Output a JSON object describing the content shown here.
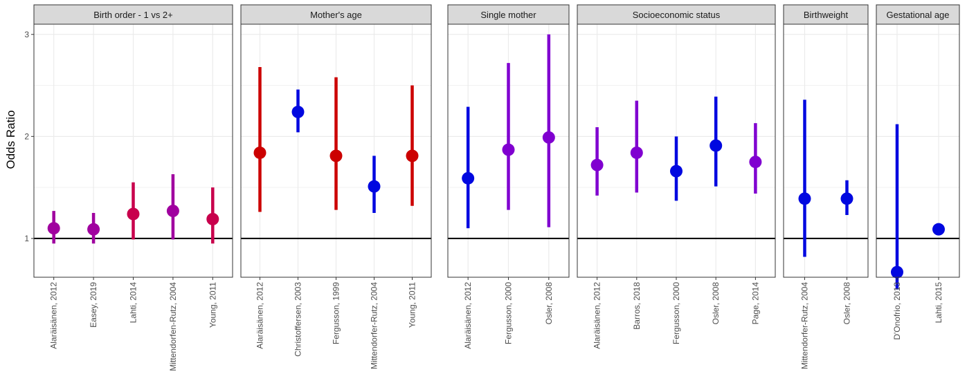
{
  "chart_data": {
    "type": "forest",
    "ylabel": "Odds Ratio",
    "reference_line": 1,
    "y_range": [
      0.62,
      3.1
    ],
    "y_ticks": [
      1,
      2,
      3
    ],
    "y_tick_labels": [
      "1",
      "2",
      "3"
    ],
    "grid": true,
    "legend": "none",
    "colors": {
      "red": "#cc0000",
      "crimson": "#c8004c",
      "magenta": "#a0009f",
      "purple": "#8000d0",
      "blue": "#0008e0"
    },
    "panels": [
      {
        "title": "Birth order - 1 vs 2+",
        "studies": [
          {
            "label": "Alaräisänen, 2012",
            "or": 1.1,
            "lower": 0.95,
            "upper": 1.27,
            "color": "#a0009f"
          },
          {
            "label": "Easey, 2019",
            "or": 1.09,
            "lower": 0.95,
            "upper": 1.25,
            "color": "#a0009f"
          },
          {
            "label": "Lahti, 2014",
            "or": 1.24,
            "lower": 0.99,
            "upper": 1.55,
            "color": "#c8004c"
          },
          {
            "label": "Mittendorfen-Rutz, 2004",
            "or": 1.27,
            "lower": 0.99,
            "upper": 1.63,
            "color": "#a0009f"
          },
          {
            "label": "Young, 2011",
            "or": 1.19,
            "lower": 0.95,
            "upper": 1.5,
            "color": "#c8004c"
          }
        ]
      },
      {
        "title": "Mother's age",
        "studies": [
          {
            "label": "Alaräisänen, 2012",
            "or": 1.84,
            "lower": 1.26,
            "upper": 2.68,
            "color": "#cc0000"
          },
          {
            "label": "Christoffersen, 2003",
            "or": 2.24,
            "lower": 2.04,
            "upper": 2.46,
            "color": "#0008e0"
          },
          {
            "label": "Fergusson, 1999",
            "or": 1.81,
            "lower": 1.28,
            "upper": 2.58,
            "color": "#cc0000"
          },
          {
            "label": "Mittendorfer-Rutz, 2004",
            "or": 1.51,
            "lower": 1.25,
            "upper": 1.81,
            "color": "#0008e0"
          },
          {
            "label": "Young, 2011",
            "or": 1.81,
            "lower": 1.32,
            "upper": 2.5,
            "color": "#cc0000"
          }
        ]
      },
      {
        "title": "Single mother",
        "studies": [
          {
            "label": "Alaräisänen, 2012",
            "or": 1.59,
            "lower": 1.1,
            "upper": 2.29,
            "color": "#0008e0"
          },
          {
            "label": "Fergusson, 2000",
            "or": 1.87,
            "lower": 1.28,
            "upper": 2.72,
            "color": "#8000d0"
          },
          {
            "label": "Osler, 2008",
            "or": 1.99,
            "lower": 1.11,
            "upper": 3.0,
            "color": "#8000d0"
          }
        ]
      },
      {
        "title": "Socioeconomic status",
        "studies": [
          {
            "label": "Alaräisänen, 2012",
            "or": 1.72,
            "lower": 1.42,
            "upper": 2.09,
            "color": "#8000d0"
          },
          {
            "label": "Barros, 2018",
            "or": 1.84,
            "lower": 1.45,
            "upper": 2.35,
            "color": "#8000d0"
          },
          {
            "label": "Fergusson, 2000",
            "or": 1.66,
            "lower": 1.37,
            "upper": 2.0,
            "color": "#0008e0"
          },
          {
            "label": "Osler, 2008",
            "or": 1.91,
            "lower": 1.51,
            "upper": 2.39,
            "color": "#0008e0"
          },
          {
            "label": "Page, 2014",
            "or": 1.75,
            "lower": 1.44,
            "upper": 2.13,
            "color": "#8000d0"
          }
        ]
      },
      {
        "title": "Birthweight",
        "studies": [
          {
            "label": "Mittendorfer-Rutz, 2004",
            "or": 1.39,
            "lower": 0.82,
            "upper": 2.36,
            "color": "#0008e0"
          },
          {
            "label": "Osler, 2008",
            "or": 1.39,
            "lower": 1.23,
            "upper": 1.57,
            "color": "#0008e0"
          }
        ]
      },
      {
        "title": "Gestational age",
        "studies": [
          {
            "label": "D'Onofrio, 2013",
            "or": 0.67,
            "lower": 0.5,
            "upper": 2.12,
            "color": "#0008e0"
          },
          {
            "label": "Lahti, 2015",
            "or": 1.09,
            "lower": 1.09,
            "upper": 1.09,
            "color": "#0008e0"
          }
        ]
      }
    ]
  }
}
